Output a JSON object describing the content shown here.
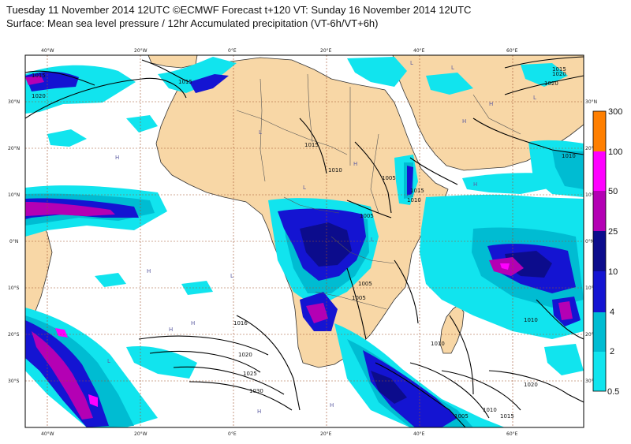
{
  "title_line1": "Tuesday 11 November 2014 12UTC ©ECMWF Forecast t+120 VT: Sunday 16 November 2014 12UTC",
  "title_line2": "Surface: Mean sea level pressure / 12hr Accumulated precipitation (VT-6h/VT+6h)",
  "longitude_labels": [
    "40°W",
    "20°W",
    "0°E",
    "20°E",
    "40°E",
    "60°E"
  ],
  "latitude_labels": [
    "30°N",
    "20°N",
    "10°N",
    "0°N",
    "10°S",
    "20°S",
    "30°S"
  ],
  "colorbar": {
    "levels": [
      "0.5",
      "2",
      "4",
      "10",
      "25",
      "50",
      "100",
      "300"
    ],
    "colors": [
      "#11e4ee",
      "#00bcd2",
      "#1414d2",
      "#0c0c8c",
      "#b400b4",
      "#ff00ff",
      "#ff7f00",
      "#ff1414"
    ]
  },
  "isobar_labels": [
    "1015",
    "1020",
    "1015",
    "1010",
    "1005",
    "1005",
    "1010",
    "1015",
    "1005",
    "1016",
    "1020",
    "1025",
    "1030",
    "1020",
    "1010",
    "1005",
    "1010",
    "1015",
    "1015",
    "1020",
    "1010",
    "1010",
    "1005",
    "1020",
    "1015"
  ],
  "pressure_center_markers": [
    "H",
    "L"
  ],
  "colors": {
    "ocean": "#ffffff",
    "land": "#f8d7a6",
    "graticule": "#a0522d",
    "coastline": "#333333",
    "isobar": "#000000"
  }
}
